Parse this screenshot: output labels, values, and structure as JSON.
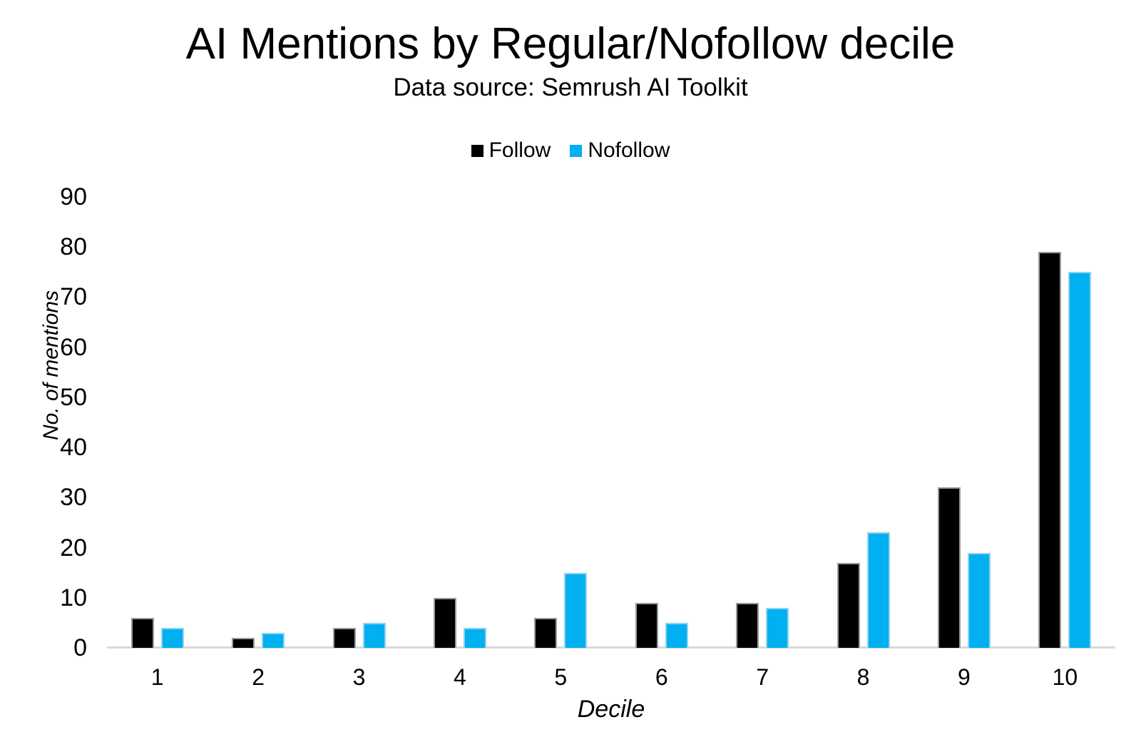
{
  "chart_data": {
    "type": "bar",
    "title": "AI Mentions by Regular/Nofollow decile",
    "subtitle": "Data source: Semrush AI Toolkit",
    "xlabel": "Decile",
    "ylabel": "No. of mentions",
    "categories": [
      "1",
      "2",
      "3",
      "4",
      "5",
      "6",
      "7",
      "8",
      "9",
      "10"
    ],
    "series": [
      {
        "name": "Follow",
        "color": "#000000",
        "values": [
          6,
          2,
          4,
          10,
          6,
          9,
          9,
          17,
          32,
          79
        ]
      },
      {
        "name": "Nofollow",
        "color": "#00b0f0",
        "values": [
          4,
          3,
          5,
          4,
          15,
          5,
          8,
          23,
          19,
          75
        ]
      }
    ],
    "ylim": [
      0,
      90
    ],
    "yticks": [
      0,
      10,
      20,
      30,
      40,
      50,
      60,
      70,
      80,
      90
    ],
    "grid": false,
    "legend_position": "top",
    "axis_color": "#d9d9d9"
  }
}
